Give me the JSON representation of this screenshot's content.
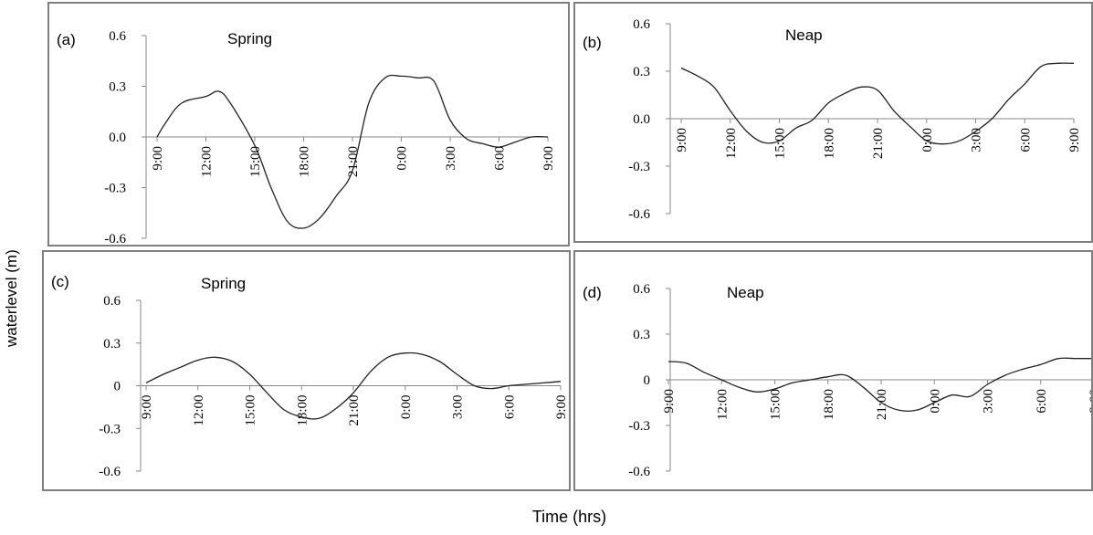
{
  "figure": {
    "ylabel": "waterlevel (m)",
    "xlabel": "Time (hrs)"
  },
  "chart_data": [
    {
      "type": "line",
      "panel_label": "(a)",
      "title": "Spring",
      "x_tick_labels": [
        "9:00",
        "12:00",
        "15:00",
        "18:00",
        "21:00",
        "0:00",
        "3:00",
        "6:00",
        "9:00"
      ],
      "y_tick_labels": [
        "0.6",
        "0.3",
        "0.0",
        "-0.3",
        "-0.6"
      ],
      "ylim": [
        -0.6,
        0.6
      ],
      "xlim": [
        0,
        24
      ],
      "x": [
        0,
        0.5,
        1.5,
        3,
        3.8,
        4.5,
        6,
        7,
        8,
        9,
        10,
        11,
        12,
        13,
        14,
        15,
        16,
        17,
        18,
        19,
        20,
        21,
        22,
        23,
        24
      ],
      "y": [
        0.0,
        0.08,
        0.2,
        0.24,
        0.27,
        0.2,
        -0.05,
        -0.3,
        -0.5,
        -0.54,
        -0.48,
        -0.35,
        -0.2,
        0.2,
        0.35,
        0.36,
        0.35,
        0.33,
        0.1,
        -0.01,
        -0.04,
        -0.06,
        -0.03,
        0.0,
        0.0
      ]
    },
    {
      "type": "line",
      "panel_label": "(b)",
      "title": "Neap",
      "x_tick_labels": [
        "9:00",
        "12:00",
        "15:00",
        "18:00",
        "21:00",
        "0:00",
        "3:00",
        "6:00",
        "9:00"
      ],
      "y_tick_labels": [
        "0.6",
        "0.3",
        "0.0",
        "-0.3",
        "-0.6"
      ],
      "ylim": [
        -0.6,
        0.6
      ],
      "xlim": [
        0,
        24
      ],
      "x": [
        0,
        1,
        2,
        3,
        4,
        5,
        6,
        7,
        8,
        9,
        10,
        11,
        12,
        13,
        14,
        15,
        16,
        17,
        18,
        19,
        20,
        21,
        22,
        23,
        24
      ],
      "y": [
        0.32,
        0.27,
        0.2,
        0.05,
        -0.08,
        -0.15,
        -0.14,
        -0.06,
        -0.01,
        0.1,
        0.16,
        0.2,
        0.18,
        0.05,
        -0.05,
        -0.14,
        -0.16,
        -0.14,
        -0.08,
        0.0,
        0.12,
        0.22,
        0.33,
        0.35,
        0.35
      ]
    },
    {
      "type": "line",
      "panel_label": "(c)",
      "title": "Spring",
      "x_tick_labels": [
        "9:00",
        "12:00",
        "15:00",
        "18:00",
        "21:00",
        "0:00",
        "3:00",
        "6:00",
        "9:00"
      ],
      "y_tick_labels": [
        "0.6",
        "0.3",
        "0",
        "-0.3",
        "-0.6"
      ],
      "ylim": [
        -0.6,
        0.6
      ],
      "xlim": [
        0,
        24
      ],
      "x": [
        0,
        1,
        2,
        3,
        4,
        5,
        6,
        7,
        8,
        9,
        10,
        11,
        12,
        13,
        14,
        15,
        16,
        17,
        18,
        19,
        20,
        21,
        22,
        23,
        24
      ],
      "y": [
        0.02,
        0.08,
        0.13,
        0.18,
        0.2,
        0.17,
        0.08,
        -0.05,
        -0.17,
        -0.22,
        -0.23,
        -0.16,
        -0.05,
        0.1,
        0.2,
        0.23,
        0.22,
        0.17,
        0.08,
        0.0,
        -0.02,
        0.0,
        0.01,
        0.02,
        0.03
      ]
    },
    {
      "type": "line",
      "panel_label": "(d)",
      "title": "Neap",
      "x_tick_labels": [
        "9:00",
        "12:00",
        "15:00",
        "18:00",
        "21:00",
        "0:00",
        "3:00",
        "6:00",
        "9:00"
      ],
      "y_tick_labels": [
        "0.6",
        "0.3",
        "0",
        "-0.3",
        "-0.6"
      ],
      "ylim": [
        -0.6,
        0.6
      ],
      "xlim": [
        0,
        24
      ],
      "x": [
        0,
        1,
        2,
        3,
        4,
        5,
        6,
        7,
        8,
        9,
        10,
        11,
        12,
        13,
        14,
        15,
        16,
        17,
        18,
        19,
        20,
        21,
        22,
        23,
        24
      ],
      "y": [
        0.12,
        0.11,
        0.05,
        0.0,
        -0.05,
        -0.08,
        -0.06,
        -0.02,
        0.0,
        0.02,
        0.03,
        -0.05,
        -0.15,
        -0.2,
        -0.2,
        -0.15,
        -0.1,
        -0.11,
        -0.03,
        0.03,
        0.07,
        0.1,
        0.14,
        0.14,
        0.14
      ]
    }
  ]
}
